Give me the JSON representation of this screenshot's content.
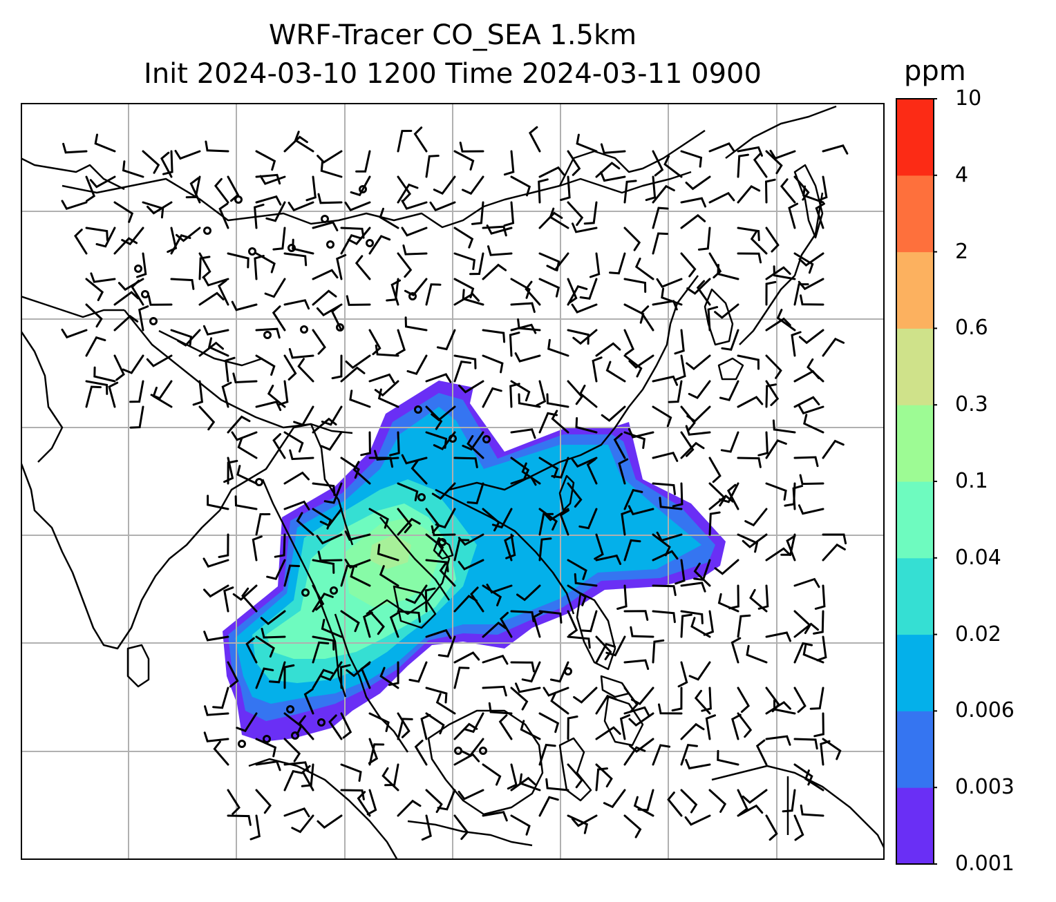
{
  "title": {
    "line1": "WRF-Tracer CO_SEA 1.5km",
    "line2": "Init 2024-03-10 1200 Time 2024-03-11 0900"
  },
  "colorbar": {
    "unit": "ppm",
    "ticks": [
      "0.001",
      "0.003",
      "0.006",
      "0.02",
      "0.04",
      "0.1",
      "0.3",
      "0.6",
      "2",
      "4",
      "10"
    ],
    "colors": [
      "#6a2ff5",
      "#3575f1",
      "#04b0ea",
      "#35dfd3",
      "#6efbbf",
      "#9dfb94",
      "#cfe28a",
      "#fcb15f",
      "#fe703c",
      "#fc2b15"
    ]
  },
  "map": {
    "coastline_color": "#000000",
    "gridline_color": "#b0b0b0",
    "barb_color": "#000000"
  }
}
